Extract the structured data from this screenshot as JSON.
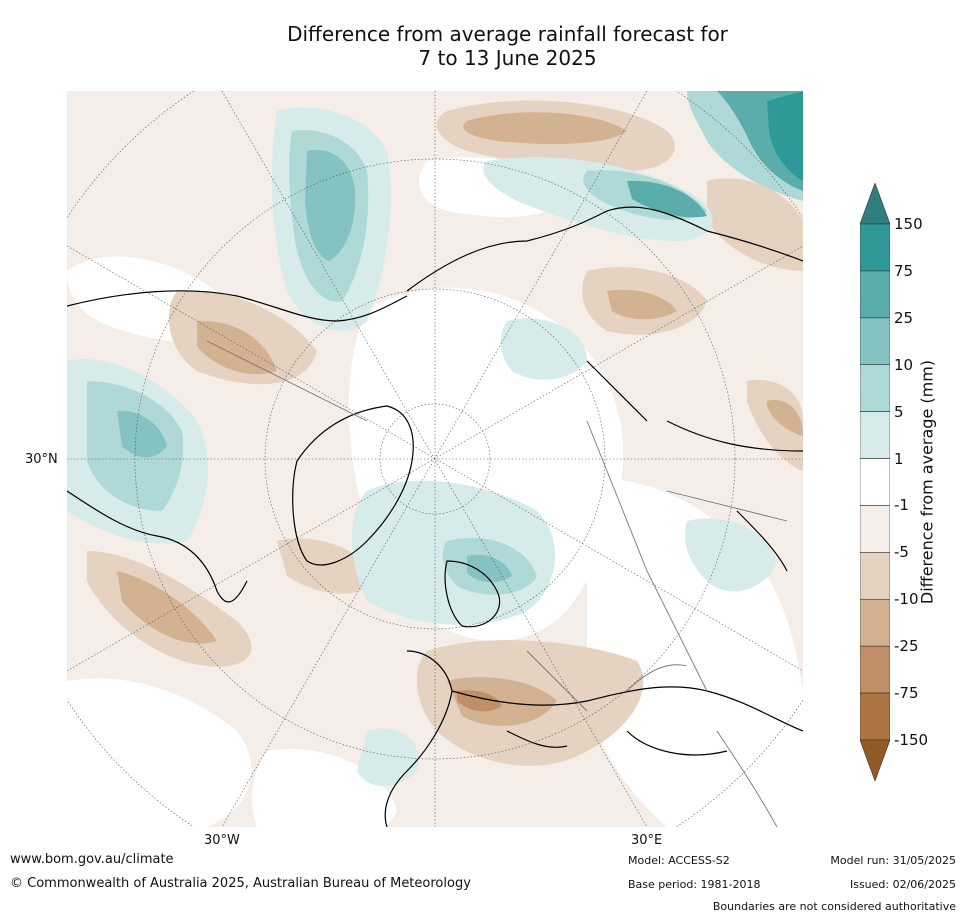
{
  "title": {
    "line1": "Difference from average rainfall forecast for",
    "line2": "7 to 13 June 2025"
  },
  "map": {
    "projection": "north polar stereographic",
    "lat_labels": [
      "30°N"
    ],
    "lon_labels": [
      "30°W",
      "30°E"
    ]
  },
  "colorbar": {
    "title": "Difference from average (mm)",
    "ticks": [
      "150",
      "75",
      "25",
      "10",
      "5",
      "1",
      "-1",
      "-5",
      "-10",
      "-25",
      "-75",
      "-150"
    ],
    "colors": [
      "#2f7f7e",
      "#2e9998",
      "#5aadab",
      "#84c3c1",
      "#afd9d7",
      "#d7ecea",
      "#ffffff",
      "#f5ede7",
      "#e5d2c1",
      "#d2b291",
      "#bf9068",
      "#ab7441",
      "#935a26"
    ]
  },
  "footer": {
    "website": "www.bom.gov.au/climate",
    "copyright": "© Commonwealth of Australia 2025, Australian Bureau of Meteorology",
    "model": "Model: ACCESS-S2",
    "base_period": "Base period: 1981-2018",
    "model_run": "Model run: 31/05/2025",
    "issued": "Issued: 02/06/2025",
    "disclaimer": "Boundaries are not considered authoritative"
  }
}
